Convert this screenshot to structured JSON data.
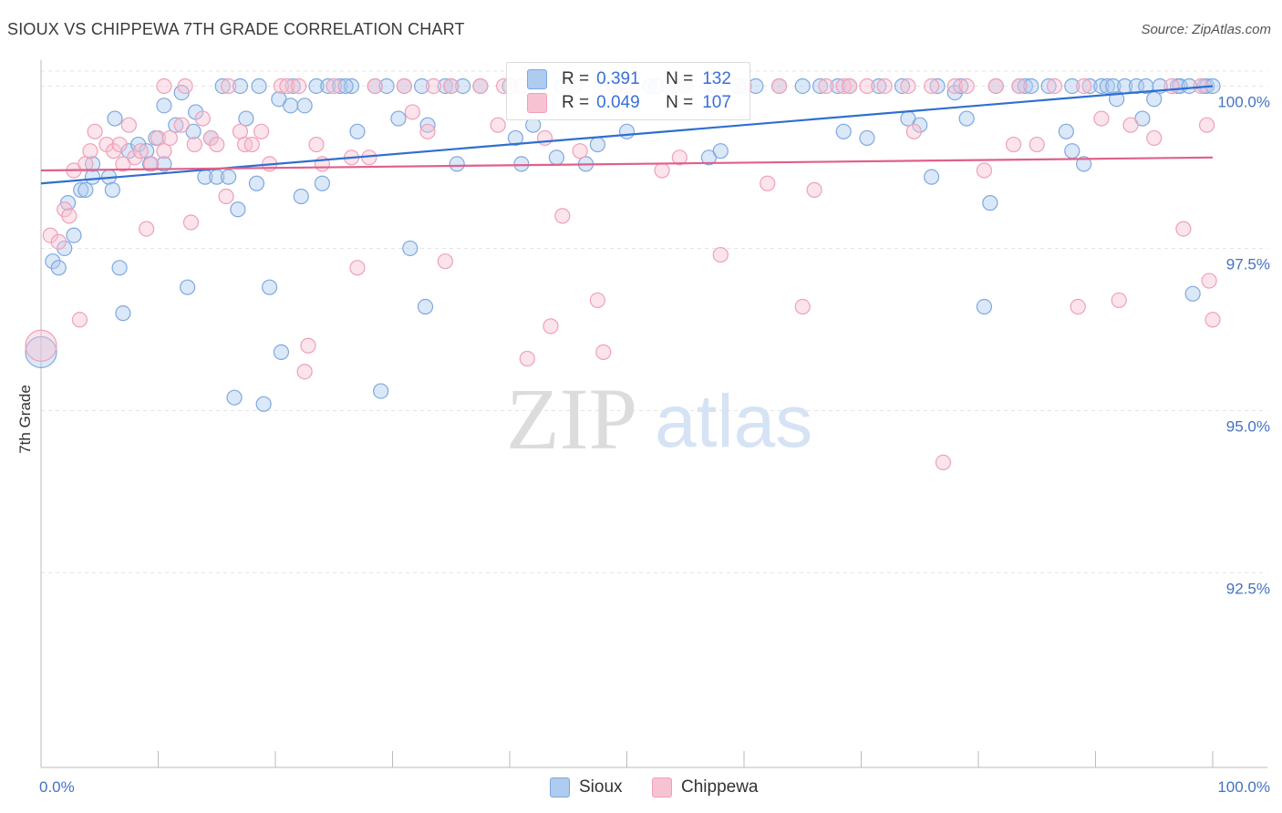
{
  "page": {
    "title": "SIOUX VS CHIPPEWA 7TH GRADE CORRELATION CHART",
    "source": "Source: ZipAtlas.com"
  },
  "watermark": {
    "zip": "ZIP",
    "atlas": "atlas"
  },
  "legend": {
    "r_label": "R =",
    "n_label": "N =",
    "rows": [
      {
        "r": "0.391",
        "n": "132"
      },
      {
        "r": "0.049",
        "n": "107"
      }
    ]
  },
  "chart_data": {
    "type": "scatter",
    "title": "SIOUX VS CHIPPEWA 7TH GRADE CORRELATION CHART",
    "xlabel": "",
    "ylabel": "7th Grade",
    "xlim": [
      0,
      100
    ],
    "ylim": [
      89.5,
      100.4
    ],
    "y_ticks": [
      {
        "value": 100.0,
        "label": "100.0%"
      },
      {
        "value": 97.5,
        "label": "97.5%"
      },
      {
        "value": 95.0,
        "label": "95.0%"
      },
      {
        "value": 92.5,
        "label": "92.5%"
      }
    ],
    "x_tick_labels": {
      "left": "0.0%",
      "right": "100.0%"
    },
    "x_minor_ticks": [
      10,
      20,
      30,
      40,
      50,
      60,
      70,
      80,
      90,
      100
    ],
    "series": [
      {
        "name": "Sioux",
        "color": "#7fa8e0",
        "fill": "#aecbf0",
        "line_color": "#2e6fd0",
        "trend": {
          "x0": 0,
          "y0": 98.5,
          "x1": 100,
          "y1": 100.0
        },
        "points": [
          [
            0,
            95.9
          ],
          [
            1,
            97.3
          ],
          [
            1.5,
            97.2
          ],
          [
            2,
            97.5
          ],
          [
            2.3,
            98.2
          ],
          [
            2.8,
            97.7
          ],
          [
            3.4,
            98.4
          ],
          [
            3.8,
            98.4
          ],
          [
            4.4,
            98.6
          ],
          [
            4.4,
            98.8
          ],
          [
            5.8,
            98.6
          ],
          [
            6.1,
            98.4
          ],
          [
            6.3,
            99.5
          ],
          [
            6.7,
            97.2
          ],
          [
            7,
            96.5
          ],
          [
            7.5,
            99.0
          ],
          [
            8.3,
            99.1
          ],
          [
            9,
            99.0
          ],
          [
            9.3,
            98.8
          ],
          [
            9.8,
            99.2
          ],
          [
            10.5,
            98.8
          ],
          [
            10.5,
            99.7
          ],
          [
            11.5,
            99.4
          ],
          [
            12,
            99.9
          ],
          [
            12.5,
            96.9
          ],
          [
            13,
            99.3
          ],
          [
            13.2,
            99.6
          ],
          [
            14,
            98.6
          ],
          [
            14.5,
            99.2
          ],
          [
            15,
            98.6
          ],
          [
            15.5,
            100
          ],
          [
            16,
            98.6
          ],
          [
            16.5,
            95.2
          ],
          [
            16.8,
            98.1
          ],
          [
            17,
            100
          ],
          [
            17.5,
            99.5
          ],
          [
            18.4,
            98.5
          ],
          [
            18.6,
            100
          ],
          [
            19,
            95.1
          ],
          [
            19.5,
            96.9
          ],
          [
            20.3,
            99.8
          ],
          [
            20.5,
            95.9
          ],
          [
            21.3,
            99.7
          ],
          [
            21.5,
            100
          ],
          [
            22.2,
            98.3
          ],
          [
            22.5,
            99.7
          ],
          [
            23.5,
            100
          ],
          [
            24,
            98.5
          ],
          [
            24.5,
            100
          ],
          [
            25.5,
            100
          ],
          [
            26.5,
            100
          ],
          [
            27,
            99.3
          ],
          [
            28.5,
            100
          ],
          [
            29,
            95.3
          ],
          [
            29.5,
            100
          ],
          [
            30.5,
            99.5
          ],
          [
            31,
            100
          ],
          [
            31.5,
            97.5
          ],
          [
            32.5,
            100
          ],
          [
            32.8,
            96.6
          ],
          [
            33,
            99.4
          ],
          [
            34.5,
            100
          ],
          [
            35.5,
            98.8
          ],
          [
            36,
            100
          ],
          [
            37.5,
            100
          ],
          [
            40,
            100
          ],
          [
            40.5,
            99.2
          ],
          [
            41,
            98.8
          ],
          [
            42,
            99.4
          ],
          [
            44,
            98.9
          ],
          [
            44.5,
            100
          ],
          [
            46.5,
            98.8
          ],
          [
            47.5,
            99.1
          ],
          [
            49,
            100
          ],
          [
            50,
            99.3
          ],
          [
            52,
            100
          ],
          [
            54,
            100
          ],
          [
            55,
            100
          ],
          [
            57,
            98.9
          ],
          [
            57.5,
            100
          ],
          [
            58,
            99.0
          ],
          [
            59.5,
            100
          ],
          [
            61,
            100
          ],
          [
            63,
            100
          ],
          [
            65,
            100
          ],
          [
            66.5,
            100
          ],
          [
            68,
            100
          ],
          [
            68.5,
            99.3
          ],
          [
            69,
            100
          ],
          [
            70.5,
            99.2
          ],
          [
            71.5,
            100
          ],
          [
            73.5,
            100
          ],
          [
            74,
            99.5
          ],
          [
            75,
            99.4
          ],
          [
            76,
            98.6
          ],
          [
            76.5,
            100
          ],
          [
            78,
            99.9
          ],
          [
            78.5,
            100
          ],
          [
            79,
            99.5
          ],
          [
            80.5,
            96.6
          ],
          [
            81,
            98.2
          ],
          [
            81.5,
            100
          ],
          [
            83.5,
            100
          ],
          [
            84,
            100
          ],
          [
            84.5,
            100
          ],
          [
            86,
            100
          ],
          [
            87.5,
            99.3
          ],
          [
            88,
            99.0
          ],
          [
            88,
            100
          ],
          [
            89,
            98.8
          ],
          [
            89.5,
            100
          ],
          [
            90.5,
            100
          ],
          [
            91,
            100
          ],
          [
            91.5,
            100
          ],
          [
            91.8,
            99.8
          ],
          [
            92.5,
            100
          ],
          [
            93.5,
            100
          ],
          [
            94,
            99.5
          ],
          [
            94.3,
            100
          ],
          [
            95,
            99.8
          ],
          [
            95.5,
            100
          ],
          [
            97,
            100
          ],
          [
            97.2,
            100
          ],
          [
            98,
            100
          ],
          [
            98.3,
            96.8
          ],
          [
            99.3,
            100
          ],
          [
            99.5,
            100
          ],
          [
            100,
            100
          ],
          [
            26,
            100
          ],
          [
            35,
            100
          ],
          [
            45.5,
            100
          ],
          [
            52.5,
            100
          ]
        ]
      },
      {
        "name": "Chippewa",
        "color": "#f0a0b8",
        "fill": "#f7c3d3",
        "line_color": "#e0608a",
        "trend": {
          "x0": 0,
          "y0": 98.7,
          "x1": 100,
          "y1": 98.9
        },
        "points": [
          [
            0,
            96.0
          ],
          [
            0.8,
            97.7
          ],
          [
            1.5,
            97.6
          ],
          [
            2,
            98.1
          ],
          [
            2.4,
            98.0
          ],
          [
            2.8,
            98.7
          ],
          [
            3.3,
            96.4
          ],
          [
            3.8,
            98.8
          ],
          [
            4.2,
            99.0
          ],
          [
            4.6,
            99.3
          ],
          [
            5.6,
            99.1
          ],
          [
            6.2,
            99.0
          ],
          [
            6.7,
            99.1
          ],
          [
            7,
            98.8
          ],
          [
            7.5,
            99.4
          ],
          [
            8,
            98.9
          ],
          [
            8.5,
            99.0
          ],
          [
            9,
            97.8
          ],
          [
            9.4,
            98.8
          ],
          [
            10,
            99.2
          ],
          [
            10.5,
            99.0
          ],
          [
            10.5,
            100
          ],
          [
            11,
            99.2
          ],
          [
            12,
            99.4
          ],
          [
            12.3,
            100
          ],
          [
            12.8,
            97.9
          ],
          [
            13.1,
            99.1
          ],
          [
            13.8,
            99.5
          ],
          [
            14.5,
            99.2
          ],
          [
            15,
            99.1
          ],
          [
            15.8,
            98.3
          ],
          [
            16,
            100
          ],
          [
            17,
            99.3
          ],
          [
            17.4,
            99.1
          ],
          [
            18,
            99.1
          ],
          [
            18.8,
            99.3
          ],
          [
            19.5,
            98.8
          ],
          [
            20.5,
            100
          ],
          [
            21,
            100
          ],
          [
            22,
            100
          ],
          [
            22.5,
            95.6
          ],
          [
            22.8,
            96.0
          ],
          [
            23.5,
            99.1
          ],
          [
            24,
            98.8
          ],
          [
            25,
            100
          ],
          [
            26.5,
            98.9
          ],
          [
            27,
            97.2
          ],
          [
            28,
            98.9
          ],
          [
            28.5,
            100
          ],
          [
            31,
            100
          ],
          [
            31.7,
            99.6
          ],
          [
            33,
            99.3
          ],
          [
            33.5,
            100
          ],
          [
            34.5,
            97.3
          ],
          [
            35,
            100
          ],
          [
            37.5,
            100
          ],
          [
            39,
            99.4
          ],
          [
            39.5,
            100
          ],
          [
            41,
            100
          ],
          [
            41.5,
            95.8
          ],
          [
            43,
            99.2
          ],
          [
            43.5,
            96.3
          ],
          [
            44.5,
            98.0
          ],
          [
            45,
            100
          ],
          [
            46,
            99.0
          ],
          [
            47.5,
            96.7
          ],
          [
            48,
            95.9
          ],
          [
            50,
            100
          ],
          [
            53,
            98.7
          ],
          [
            53.5,
            100
          ],
          [
            54.5,
            98.9
          ],
          [
            55,
            100
          ],
          [
            58,
            97.4
          ],
          [
            60,
            100
          ],
          [
            62,
            98.5
          ],
          [
            63,
            100
          ],
          [
            65,
            96.6
          ],
          [
            66,
            98.4
          ],
          [
            67,
            100
          ],
          [
            68.5,
            100
          ],
          [
            69,
            100
          ],
          [
            70.5,
            100
          ],
          [
            72,
            100
          ],
          [
            74,
            100
          ],
          [
            74.5,
            99.3
          ],
          [
            76,
            100
          ],
          [
            77,
            94.2
          ],
          [
            78,
            100
          ],
          [
            79,
            100
          ],
          [
            80.5,
            98.7
          ],
          [
            81.5,
            100
          ],
          [
            83,
            99.1
          ],
          [
            83.5,
            100
          ],
          [
            85,
            99.1
          ],
          [
            86.5,
            100
          ],
          [
            88.5,
            96.6
          ],
          [
            89,
            100
          ],
          [
            90.5,
            99.5
          ],
          [
            92,
            96.7
          ],
          [
            93,
            99.4
          ],
          [
            95,
            99.2
          ],
          [
            96.5,
            100
          ],
          [
            97.5,
            97.8
          ],
          [
            99,
            100
          ],
          [
            99.5,
            99.4
          ],
          [
            99.7,
            97.0
          ],
          [
            100,
            96.4
          ]
        ]
      }
    ]
  },
  "bottom_legend": [
    "Sioux",
    "Chippewa"
  ]
}
